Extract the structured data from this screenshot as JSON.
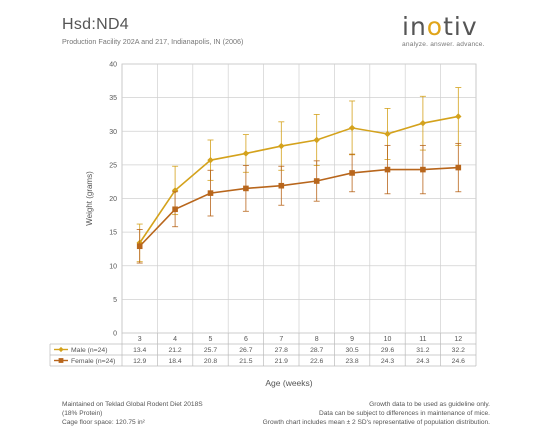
{
  "header": {
    "title": "Hsd:ND4",
    "subtitle": "Production Facility 202A and 217, Indianapolis, IN (2006)"
  },
  "logo": {
    "word_start": "in",
    "word_accent": "o",
    "word_end": "tiv",
    "tagline": "analyze. answer. advance."
  },
  "chart_data": {
    "type": "line",
    "xlabel": "Age (weeks)",
    "ylabel": "Weight (grams)",
    "ylim": [
      0,
      40
    ],
    "yticks": [
      0,
      5,
      10,
      15,
      20,
      25,
      30,
      35,
      40
    ],
    "grid": true,
    "categories": [
      "3",
      "4",
      "5",
      "6",
      "7",
      "8",
      "9",
      "10",
      "11",
      "12"
    ],
    "series": [
      {
        "name": "Male (n=24)",
        "color": "#d4a21c",
        "marker": "diamond",
        "values": [
          13.4,
          21.2,
          25.7,
          26.7,
          27.8,
          28.7,
          30.5,
          29.6,
          31.2,
          32.2
        ],
        "sd2": [
          2.8,
          3.6,
          3.0,
          2.8,
          3.6,
          3.8,
          4.0,
          3.8,
          4.0,
          4.3
        ]
      },
      {
        "name": "Female (n=24)",
        "color": "#b8661c",
        "marker": "square",
        "values": [
          12.9,
          18.4,
          20.8,
          21.5,
          21.9,
          22.6,
          23.8,
          24.3,
          24.3,
          24.6
        ],
        "sd2": [
          2.5,
          2.6,
          3.4,
          3.4,
          2.9,
          3.0,
          2.8,
          3.6,
          3.6,
          3.6
        ]
      }
    ]
  },
  "footer": {
    "left": [
      "Maintained on Teklad Global Rodent Diet 2018S",
      "(18% Protein)",
      "Cage floor space: 120.75 in²"
    ],
    "right": [
      "Growth data to be used as guideline only.",
      "Data can be subject to differences in maintenance of mice.",
      "Growth chart includes mean ± 2 SD's representative of population distribution."
    ]
  }
}
